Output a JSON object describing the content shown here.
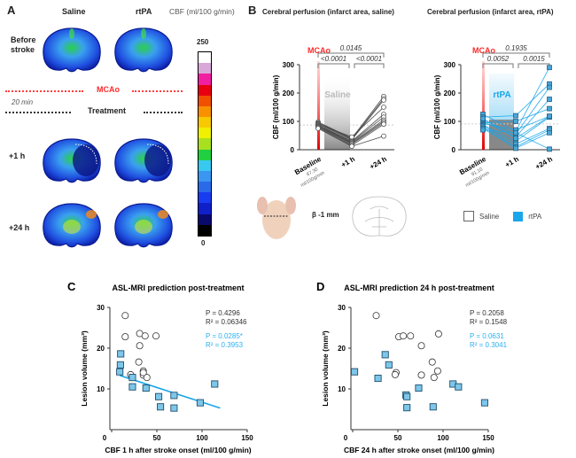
{
  "panel_a": {
    "letter": "A",
    "col_saline": "Saline",
    "col_rtpa": "rtPA",
    "colorbar_title": "CBF (ml/100 g/min)",
    "colorbar_max": "250",
    "colorbar_min": "0",
    "colorbar_colors": [
      "#000000",
      "#0a0a6e",
      "#1020c8",
      "#1a3cf0",
      "#2a6ae8",
      "#3a96f0",
      "#38c8f0",
      "#20d040",
      "#a8e020",
      "#f0f000",
      "#f8c800",
      "#f89000",
      "#f05000",
      "#e80010",
      "#f020a0",
      "#d8a8d8",
      "#ffffff"
    ],
    "row_before": [
      "Before",
      "stroke"
    ],
    "mcao_label": "MCAo",
    "delay_label": "20 min",
    "treatment_label": "Treatment",
    "row_1h": "+1 h",
    "row_24h": "+24 h",
    "accent_red": "#ff2a2a"
  },
  "panel_b": {
    "letter": "B",
    "title_saline": "Cerebral perfusion (infarct area, saline)",
    "title_rtpa": "Cerebral perfusion (infarct area, rtPA)",
    "stereotaxic_label": "β -1 mm",
    "legend": [
      {
        "label": "Saline",
        "color": "#ffffff"
      },
      {
        "label": "rtPA",
        "color": "#1aa6ea"
      }
    ]
  },
  "chart_data": [
    {
      "id": "b-saline",
      "type": "line",
      "ylabel": "CBF (ml/100 g/min)",
      "ylim": [
        0,
        300
      ],
      "yticks": [
        "0",
        "100",
        "200",
        "300"
      ],
      "categories": [
        "Baseline",
        "+1 h",
        "+24 h"
      ],
      "baseline_note": [
        "87.30",
        "ml/100g/min"
      ],
      "event_label": "MCAo",
      "treatment_label": "Saline",
      "reference_value": 87.3,
      "marker": "circle",
      "color": "#444444",
      "comparisons": [
        {
          "from": 0,
          "to": 2,
          "p": "0.0145"
        },
        {
          "from": 0,
          "to": 1,
          "p": "<0.0001"
        },
        {
          "from": 1,
          "to": 2,
          "p": "<0.0001"
        }
      ],
      "subjects": [
        [
          98,
          40,
          188
        ],
        [
          95,
          38,
          180
        ],
        [
          92,
          35,
          175
        ],
        [
          90,
          45,
          150
        ],
        [
          88,
          30,
          125
        ],
        [
          86,
          28,
          115
        ],
        [
          84,
          25,
          105
        ],
        [
          82,
          22,
          100
        ],
        [
          80,
          20,
          95
        ],
        [
          78,
          15,
          90
        ],
        [
          75,
          12,
          48
        ]
      ]
    },
    {
      "id": "b-rtpa",
      "type": "line",
      "ylabel": "CBF (ml/100 g/min)",
      "ylim": [
        0,
        300
      ],
      "yticks": [
        "0",
        "100",
        "200",
        "300"
      ],
      "categories": [
        "Baseline",
        "+1 h",
        "+24 h"
      ],
      "baseline_note": [
        "91.10",
        "ml/100g/min"
      ],
      "event_label": "MCAo",
      "treatment_label": "rtPA",
      "reference_value": 91.1,
      "marker": "square",
      "color": "#1aa6ea",
      "comparisons": [
        {
          "from": 0,
          "to": 2,
          "p": "0.1935"
        },
        {
          "from": 0,
          "to": 1,
          "p": "0.0052"
        },
        {
          "from": 1,
          "to": 2,
          "p": "0.0015"
        }
      ],
      "subjects": [
        [
          125,
          65,
          290
        ],
        [
          115,
          120,
          232
        ],
        [
          105,
          55,
          220
        ],
        [
          100,
          45,
          178
        ],
        [
          95,
          100,
          145
        ],
        [
          92,
          70,
          118
        ],
        [
          88,
          30,
          115
        ],
        [
          85,
          20,
          75
        ],
        [
          80,
          10,
          70
        ],
        [
          75,
          5,
          60
        ],
        [
          70,
          60,
          2
        ],
        [
          110,
          40,
          118
        ]
      ]
    },
    {
      "id": "c",
      "letter": "C",
      "type": "scatter",
      "title": "ASL-MRI prediction post-treatment",
      "xlabel": "CBF 1 h after stroke onset (ml/100 g/min)",
      "ylabel": "Lesion volume (mm³)",
      "xlim": [
        0,
        150
      ],
      "ylim": [
        0,
        30
      ],
      "xticks": [
        "0",
        "50",
        "100",
        "150"
      ],
      "yticks": [
        "10",
        "20",
        "30"
      ],
      "stats_saline": [
        "P = 0.4296",
        "R² = 0.06346"
      ],
      "stats_rtpa": [
        "P = 0.0285*",
        "R² = 0.3953"
      ],
      "saline": [
        [
          15,
          28
        ],
        [
          15,
          22.8
        ],
        [
          31,
          23.6
        ],
        [
          37,
          23
        ],
        [
          49,
          23
        ],
        [
          31,
          20.6
        ],
        [
          30,
          16.6
        ],
        [
          35,
          14.4
        ],
        [
          35,
          13.4
        ],
        [
          21,
          13.5
        ],
        [
          39,
          12.8
        ],
        [
          35,
          14
        ]
      ],
      "rtpa": [
        [
          10,
          18.6
        ],
        [
          9.7,
          15.9
        ],
        [
          9,
          14.2
        ],
        [
          23,
          12.8
        ],
        [
          23,
          10.5
        ],
        [
          38,
          10.2
        ],
        [
          52,
          8.1
        ],
        [
          54,
          5.6
        ],
        [
          69,
          8.4
        ],
        [
          69,
          5.3
        ],
        [
          98,
          6.6
        ],
        [
          114,
          11.2
        ]
      ],
      "fit_rtpa": [
        [
          9,
          13.3
        ],
        [
          120,
          5.3
        ]
      ]
    },
    {
      "id": "d",
      "letter": "D",
      "type": "scatter",
      "title": "ASL-MRI prediction 24 h post-treatment",
      "xlabel": "CBF 24 h after stroke onset (ml/100 g/min)",
      "ylabel": "Lesion volume (mm³)",
      "xlim": [
        0,
        150
      ],
      "ylim": [
        0,
        30
      ],
      "xticks": [
        "0",
        "50",
        "100",
        "150"
      ],
      "yticks": [
        "10",
        "20",
        "30"
      ],
      "stats_saline": [
        "P = 0.2058",
        "R² = 0.1548"
      ],
      "stats_rtpa": [
        "P = 0.0631",
        "R² = 0.3041"
      ],
      "saline": [
        [
          26,
          28
        ],
        [
          51,
          22.8
        ],
        [
          56,
          23
        ],
        [
          64,
          23
        ],
        [
          95,
          23.5
        ],
        [
          76,
          20.6
        ],
        [
          88,
          16.6
        ],
        [
          94,
          14.4
        ],
        [
          48,
          14
        ],
        [
          47,
          13.5
        ],
        [
          76,
          13.4
        ],
        [
          90,
          12.8
        ]
      ],
      "rtpa": [
        [
          2,
          14.2
        ],
        [
          36,
          18.4
        ],
        [
          40,
          15.9
        ],
        [
          28,
          12.6
        ],
        [
          73,
          10.2
        ],
        [
          59,
          8.5
        ],
        [
          60,
          8.1
        ],
        [
          60,
          5.4
        ],
        [
          89,
          5.6
        ],
        [
          111,
          11.2
        ],
        [
          117,
          10.5
        ],
        [
          146,
          6.6
        ]
      ]
    }
  ]
}
